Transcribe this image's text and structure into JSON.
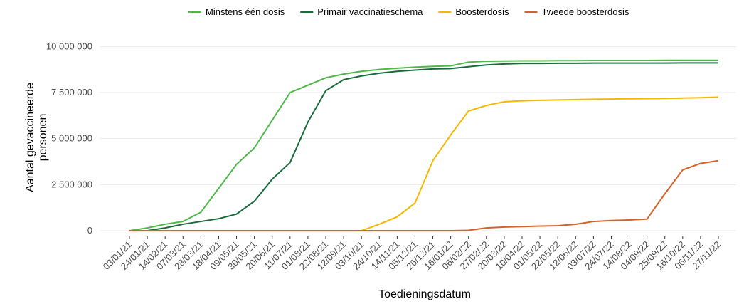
{
  "chart_data": {
    "type": "line",
    "x_label": "Toedieningsdatum",
    "y_label": "Aantal gevaccineerde personen",
    "categories": [
      "03/01/21",
      "24/01/21",
      "14/02/21",
      "07/03/21",
      "28/03/21",
      "18/04/21",
      "09/05/21",
      "30/05/21",
      "20/06/21",
      "11/07/21",
      "01/08/21",
      "22/08/21",
      "12/09/21",
      "03/10/21",
      "24/10/21",
      "14/11/21",
      "05/12/21",
      "26/12/21",
      "16/01/22",
      "06/02/22",
      "27/02/22",
      "20/03/22",
      "10/04/22",
      "01/05/22",
      "22/05/22",
      "12/06/22",
      "03/07/22",
      "24/07/22",
      "14/08/22",
      "04/09/22",
      "25/09/22",
      "16/10/22",
      "06/11/22",
      "27/11/22"
    ],
    "series": [
      {
        "name": "Minstens één dosis",
        "color": "#4db848",
        "values": [
          0,
          150000,
          350000,
          500000,
          1000000,
          2300000,
          3600000,
          4500000,
          6000000,
          7500000,
          7900000,
          8300000,
          8500000,
          8650000,
          8750000,
          8820000,
          8880000,
          8920000,
          8950000,
          9150000,
          9200000,
          9210000,
          9220000,
          9220000,
          9230000,
          9230000,
          9240000,
          9240000,
          9240000,
          9240000,
          9250000,
          9250000,
          9250000,
          9250000
        ]
      },
      {
        "name": "Primair vaccinatieschema",
        "color": "#1a6b3c",
        "values": [
          0,
          0,
          150000,
          350000,
          500000,
          650000,
          900000,
          1600000,
          2800000,
          3700000,
          5900000,
          7600000,
          8200000,
          8400000,
          8550000,
          8650000,
          8720000,
          8780000,
          8800000,
          8900000,
          9000000,
          9050000,
          9080000,
          9080000,
          9090000,
          9090000,
          9100000,
          9100000,
          9100000,
          9100000,
          9100000,
          9110000,
          9110000,
          9110000
        ]
      },
      {
        "name": "Boosterdosis",
        "color": "#f5b800",
        "values": [
          0,
          0,
          0,
          0,
          0,
          0,
          0,
          0,
          0,
          0,
          0,
          0,
          0,
          0,
          350000,
          750000,
          1500000,
          3800000,
          5200000,
          6500000,
          6800000,
          7000000,
          7050000,
          7080000,
          7100000,
          7120000,
          7140000,
          7150000,
          7160000,
          7170000,
          7180000,
          7200000,
          7220000,
          7250000
        ]
      },
      {
        "name": "Tweede boosterdosis",
        "color": "#d4622a",
        "values": [
          0,
          0,
          0,
          0,
          0,
          0,
          0,
          0,
          0,
          0,
          0,
          0,
          0,
          0,
          0,
          0,
          0,
          0,
          0,
          20000,
          150000,
          200000,
          220000,
          250000,
          270000,
          350000,
          500000,
          550000,
          580000,
          630000,
          2000000,
          3300000,
          3650000,
          3800000
        ]
      }
    ],
    "ylim": [
      0,
      10400000
    ],
    "yticks": [
      0,
      {
        "value": 2500000,
        "label": "2 500 000"
      },
      {
        "value": 5000000,
        "label": "5 000 000"
      },
      {
        "value": 7500000,
        "label": "7 500 000"
      },
      {
        "value": 10000000,
        "label": "10 000 000"
      }
    ],
    "grid": true,
    "legend": "top"
  }
}
